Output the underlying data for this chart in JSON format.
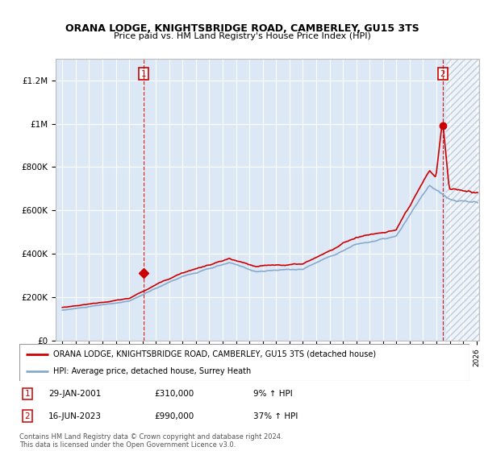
{
  "title": "ORANA LODGE, KNIGHTSBRIDGE ROAD, CAMBERLEY, GU15 3TS",
  "subtitle": "Price paid vs. HM Land Registry's House Price Index (HPI)",
  "legend_line1": "ORANA LODGE, KNIGHTSBRIDGE ROAD, CAMBERLEY, GU15 3TS (detached house)",
  "legend_line2": "HPI: Average price, detached house, Surrey Heath",
  "annotation1_date": "29-JAN-2001",
  "annotation1_price": "£310,000",
  "annotation1_hpi": "9% ↑ HPI",
  "annotation1_year": 2001.08,
  "annotation1_value": 310000,
  "annotation2_date": "16-JUN-2023",
  "annotation2_price": "£990,000",
  "annotation2_hpi": "37% ↑ HPI",
  "annotation2_year": 2023.46,
  "annotation2_value": 990000,
  "footer": "Contains HM Land Registry data © Crown copyright and database right 2024.\nThis data is licensed under the Open Government Licence v3.0.",
  "red_color": "#cc0000",
  "blue_color": "#88aacc",
  "bg_color": "#dce8f5",
  "ylim_min": 0,
  "ylim_max": 1300000,
  "xlim_min": 1994.5,
  "xlim_max": 2026.2
}
